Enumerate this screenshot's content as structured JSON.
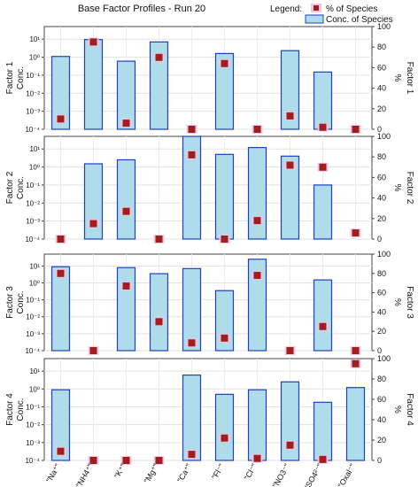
{
  "title": "Base Factor Profiles - Run 20",
  "legend": {
    "label": "Legend:",
    "items": [
      {
        "name": "% of Species",
        "marker": "square",
        "color": "#a01e1e",
        "halo": "#f2c4e6"
      },
      {
        "name": "Conc. of Species",
        "marker": "bar",
        "fill": "#aedcea",
        "stroke": "#1f3fbf"
      }
    ]
  },
  "chart_data": {
    "type": "bar",
    "categories": [
      "Na⁺",
      "NH4⁺",
      "K⁺",
      "Mg⁺",
      "Ca⁺",
      "Fl⁻",
      "Cl⁻",
      "NO3⁻",
      "SO4²⁻",
      "Oxal⁻"
    ],
    "left_axis": {
      "scale": "log",
      "ylim": [
        0.0001,
        50
      ],
      "tick_labels": [
        "10⁻⁴",
        "10⁻³",
        "10⁻²",
        "10⁻¹",
        "10⁰",
        "10¹"
      ]
    },
    "right_axis": {
      "scale": "linear",
      "ylim": [
        0,
        100
      ],
      "tick_labels": [
        "0",
        "20",
        "40",
        "60",
        "80",
        "100"
      ],
      "unit": "%"
    },
    "grid": true,
    "legend_position": "top-right",
    "factors": [
      {
        "left_label_top": "Factor 1",
        "left_label_bottom": "Conc.",
        "right_label": "Factor 1",
        "conc": [
          1.1,
          9.5,
          0.6,
          7.0,
          null,
          1.6,
          null,
          2.3,
          0.15,
          null
        ],
        "percent": [
          10,
          85,
          6,
          70,
          0,
          64,
          0,
          13,
          2,
          0
        ]
      },
      {
        "left_label_top": "Factor 2",
        "left_label_bottom": "Conc.",
        "right_label": "Factor 2",
        "conc": [
          null,
          1.5,
          2.5,
          null,
          50,
          5.0,
          12,
          4.0,
          0.1,
          null
        ],
        "percent": [
          0,
          15,
          27,
          0,
          82,
          0,
          18,
          72,
          70,
          6
        ]
      },
      {
        "left_label_top": "Factor 3",
        "left_label_bottom": "Conc.",
        "right_label": "Factor 3",
        "conc": [
          9.0,
          null,
          8.0,
          3.5,
          7.0,
          0.35,
          25,
          null,
          1.5,
          null
        ],
        "percent": [
          80,
          0,
          67,
          30,
          8,
          13,
          78,
          0,
          25,
          0
        ]
      },
      {
        "left_label_top": "Factor 4",
        "left_label_bottom": "Conc.",
        "right_label": "Factor 4",
        "conc": [
          0.9,
          null,
          null,
          null,
          6.0,
          0.5,
          0.9,
          2.5,
          0.18,
          1.2
        ],
        "percent": [
          9,
          0,
          0,
          0,
          6,
          22,
          2,
          15,
          1,
          95
        ]
      }
    ]
  }
}
